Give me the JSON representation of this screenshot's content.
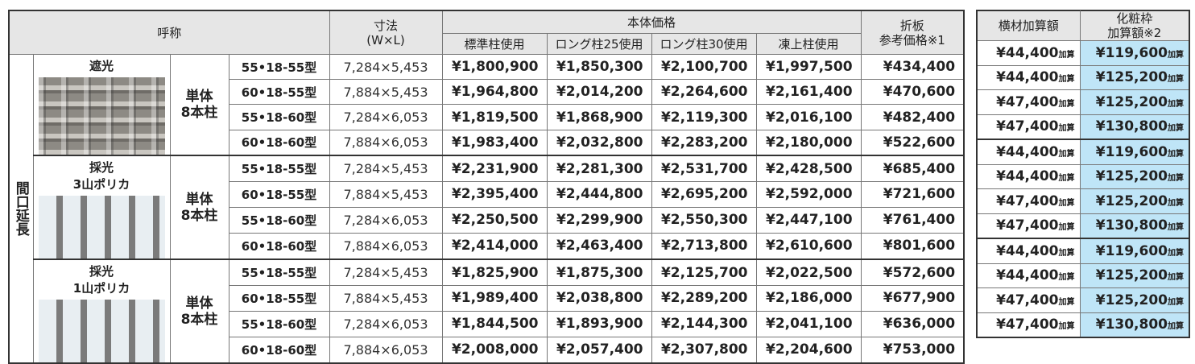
{
  "table": {
    "side_label": "間口延長",
    "header": {
      "name": "呼称",
      "dimension": [
        "寸法",
        "(W×L)"
      ],
      "body_price": "本体価格",
      "price_columns": [
        "標準柱使用",
        "ロング柱25使用",
        "ロング柱30使用",
        "凍上柱使用"
      ],
      "folded_plate": [
        "折板",
        "参考価格※1"
      ],
      "crossbar": "横材加算額",
      "trim_frame": [
        "化粧枠",
        "加算額※2"
      ]
    },
    "add_mark": "加算",
    "groups": [
      {
        "label": [
          "遮光"
        ],
        "pillar": [
          "単体",
          "8本柱"
        ],
        "rows": [
          {
            "model": "55•18-55型",
            "size": "7,284×5,453",
            "prices": [
              "¥1,800,900",
              "¥1,850,300",
              "¥2,100,700",
              "¥1,997,500"
            ],
            "folded_plate": "¥434,400",
            "crossbar": "¥44,400",
            "trim_frame": "¥119,600"
          },
          {
            "model": "60•18-55型",
            "size": "7,884×5,453",
            "prices": [
              "¥1,964,800",
              "¥2,014,200",
              "¥2,264,600",
              "¥2,161,400"
            ],
            "folded_plate": "¥470,600",
            "crossbar": "¥44,400",
            "trim_frame": "¥125,200"
          },
          {
            "model": "55•18-60型",
            "size": "7,284×6,053",
            "prices": [
              "¥1,819,500",
              "¥1,868,900",
              "¥2,119,300",
              "¥2,016,100"
            ],
            "folded_plate": "¥482,400",
            "crossbar": "¥47,400",
            "trim_frame": "¥125,200"
          },
          {
            "model": "60•18-60型",
            "size": "7,884×6,053",
            "prices": [
              "¥1,983,400",
              "¥2,032,800",
              "¥2,283,200",
              "¥2,180,000"
            ],
            "folded_plate": "¥522,600",
            "crossbar": "¥47,400",
            "trim_frame": "¥130,800"
          }
        ]
      },
      {
        "label": [
          "採光",
          "3山ポリカ"
        ],
        "pillar": [
          "単体",
          "8本柱"
        ],
        "rows": [
          {
            "model": "55•18-55型",
            "size": "7,284×5,453",
            "prices": [
              "¥2,231,900",
              "¥2,281,300",
              "¥2,531,700",
              "¥2,428,500"
            ],
            "folded_plate": "¥685,400",
            "crossbar": "¥44,400",
            "trim_frame": "¥119,600"
          },
          {
            "model": "60•18-55型",
            "size": "7,884×5,453",
            "prices": [
              "¥2,395,400",
              "¥2,444,800",
              "¥2,695,200",
              "¥2,592,000"
            ],
            "folded_plate": "¥721,600",
            "crossbar": "¥44,400",
            "trim_frame": "¥125,200"
          },
          {
            "model": "55•18-60型",
            "size": "7,284×6,053",
            "prices": [
              "¥2,250,500",
              "¥2,299,900",
              "¥2,550,300",
              "¥2,447,100"
            ],
            "folded_plate": "¥761,400",
            "crossbar": "¥47,400",
            "trim_frame": "¥125,200"
          },
          {
            "model": "60•18-60型",
            "size": "7,884×6,053",
            "prices": [
              "¥2,414,000",
              "¥2,463,400",
              "¥2,713,800",
              "¥2,610,600"
            ],
            "folded_plate": "¥801,600",
            "crossbar": "¥47,400",
            "trim_frame": "¥130,800"
          }
        ]
      },
      {
        "label": [
          "採光",
          "1山ポリカ"
        ],
        "pillar": [
          "単体",
          "8本柱"
        ],
        "rows": [
          {
            "model": "55•18-55型",
            "size": "7,284×5,453",
            "prices": [
              "¥1,825,900",
              "¥1,875,300",
              "¥2,125,700",
              "¥2,022,500"
            ],
            "folded_plate": "¥572,600",
            "crossbar": "¥44,400",
            "trim_frame": "¥119,600"
          },
          {
            "model": "60•18-55型",
            "size": "7,884×5,453",
            "prices": [
              "¥1,989,400",
              "¥2,038,800",
              "¥2,289,200",
              "¥2,186,000"
            ],
            "folded_plate": "¥677,900",
            "crossbar": "¥44,400",
            "trim_frame": "¥125,200"
          },
          {
            "model": "55•18-60型",
            "size": "7,284×6,053",
            "prices": [
              "¥1,844,500",
              "¥1,893,900",
              "¥2,144,300",
              "¥2,041,100"
            ],
            "folded_plate": "¥636,000",
            "crossbar": "¥47,400",
            "trim_frame": "¥125,200"
          },
          {
            "model": "60•18-60型",
            "size": "7,884×6,053",
            "prices": [
              "¥2,008,000",
              "¥2,057,400",
              "¥2,307,800",
              "¥2,204,600"
            ],
            "folded_plate": "¥753,000",
            "crossbar": "¥47,400",
            "trim_frame": "¥130,800"
          }
        ]
      }
    ]
  }
}
